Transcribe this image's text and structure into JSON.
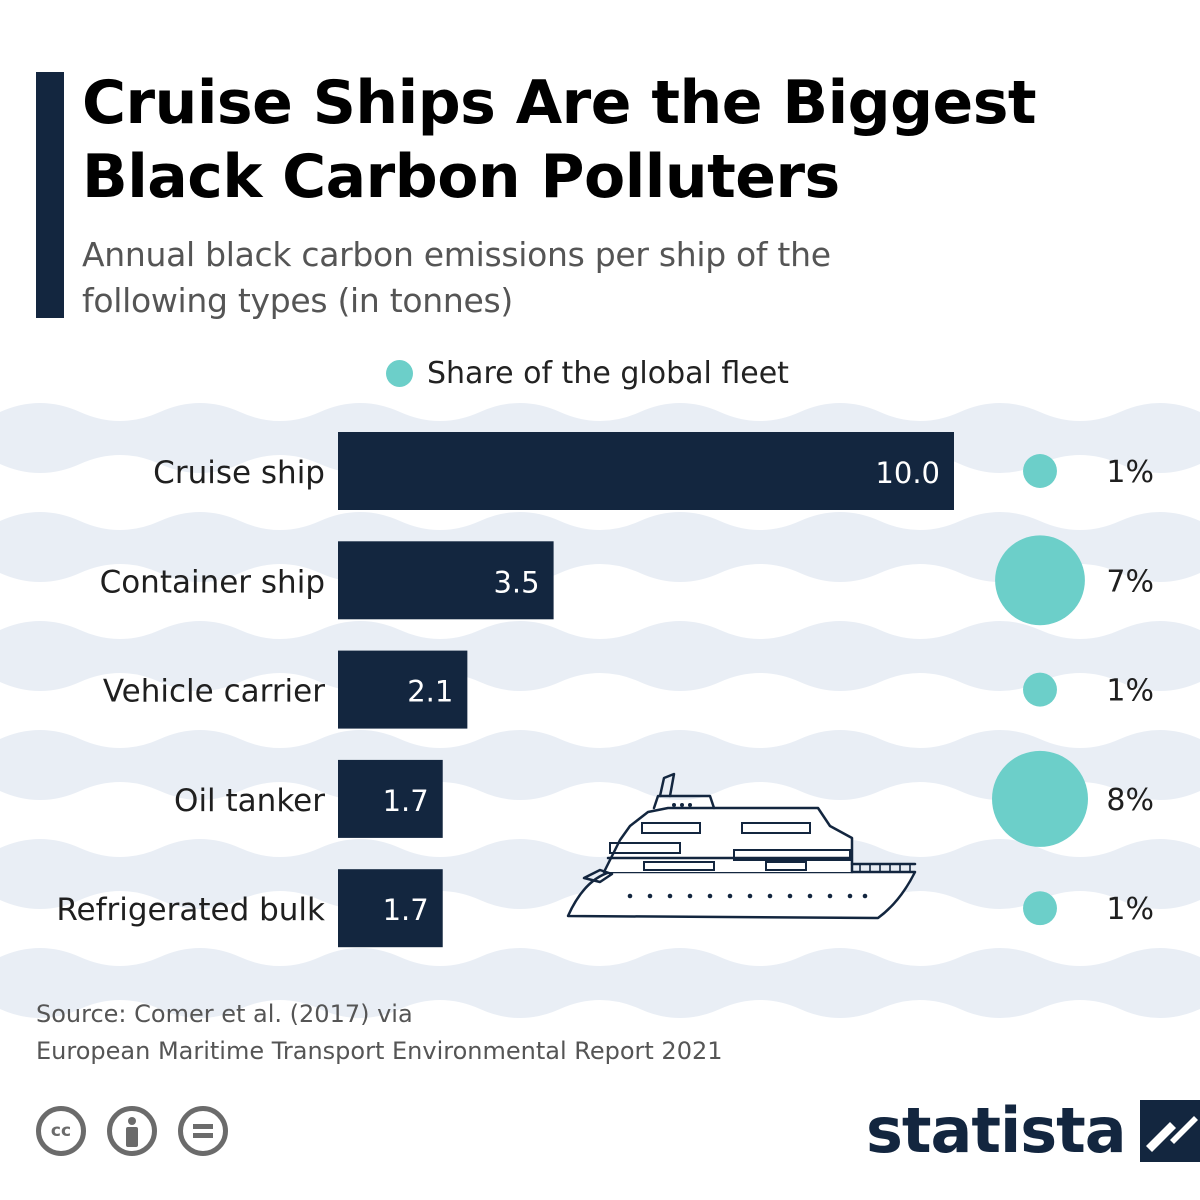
{
  "header": {
    "title": "Cruise Ships Are the Biggest Black Carbon Polluters",
    "subtitle": "Annual black carbon emissions per ship of the following types (in tonnes)"
  },
  "legend": {
    "label": "Share of the global fleet"
  },
  "chart_data": {
    "type": "bar",
    "orientation": "horizontal",
    "title": "Cruise Ships Are the Biggest Black Carbon Polluters",
    "subtitle": "Annual black carbon emissions per ship of the following types (in tonnes)",
    "categories": [
      "Cruise ship",
      "Container ship",
      "Vehicle carrier",
      "Oil tanker",
      "Refrigerated bulk"
    ],
    "series": [
      {
        "values": [
          10.0,
          3.5,
          2.1,
          1.7,
          1.7
        ],
        "labels": [
          "10.0",
          "3.5",
          "2.1",
          "1.7",
          "1.7"
        ]
      },
      {
        "name": "Share of the global fleet",
        "values": [
          1,
          7,
          1,
          8,
          1
        ],
        "labels": [
          "1%",
          "7%",
          "1%",
          "8%",
          "1%"
        ],
        "marker": "bubble"
      }
    ],
    "xlim": [
      0,
      10.0
    ],
    "grid": false,
    "legend_position": "top"
  },
  "footer": {
    "source_line_1": "Source: Comer et al. (2017) via",
    "source_line_2": "European Maritime Transport Environmental Report 2021",
    "brand": "statista"
  },
  "icons": {
    "license": [
      "cc-icon",
      "attribution-icon",
      "no-derivatives-icon"
    ],
    "illustration": "cruise-ship-icon",
    "brand_logo": "statista-logo-icon"
  },
  "colors": {
    "bar": "#13263f",
    "bubble": "#6ccfc9",
    "accent": "#13263f",
    "wave": "#e9eef5",
    "brand": "#13263f"
  }
}
